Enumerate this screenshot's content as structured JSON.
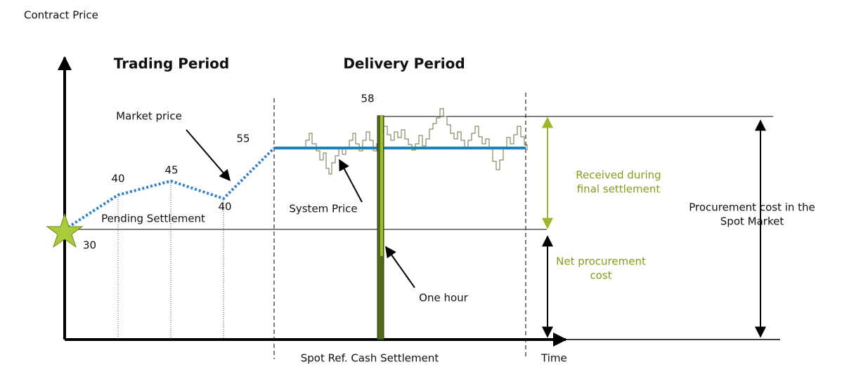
{
  "axis": {
    "y_label": "Contract Price",
    "x_label": "Time"
  },
  "periods": {
    "trading": "Trading Period",
    "delivery": "Delivery Period"
  },
  "price_labels": {
    "start": "30",
    "p1": "40",
    "p2": "45",
    "p3": "40",
    "p4": "55",
    "peak": "58"
  },
  "annotations": {
    "market_price": "Market price",
    "pending": "Pending Settlement",
    "system_price": "System Price",
    "one_hour": "One hour",
    "received": [
      "Received during",
      "final settlement"
    ],
    "net_cost": [
      "Net procurement",
      "cost"
    ],
    "procurement": [
      "Procurement cost in the",
      "Spot Market"
    ],
    "spot_ref": "Spot Ref. Cash Settlement"
  }
}
